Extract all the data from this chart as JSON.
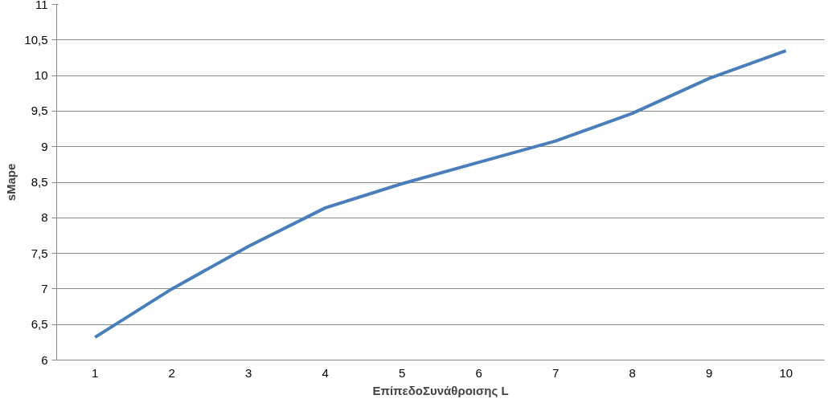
{
  "chart_data": {
    "type": "line",
    "xlabel": "ΕπίπεδοΣυνάθροισης L",
    "ylabel": "sMape",
    "categories": [
      "1",
      "2",
      "3",
      "4",
      "5",
      "6",
      "7",
      "8",
      "9",
      "10"
    ],
    "series": [
      {
        "color": "#4a7ebb",
        "values": [
          6.32,
          7.0,
          7.6,
          8.14,
          8.48,
          8.78,
          9.08,
          9.47,
          9.96,
          10.35
        ]
      }
    ],
    "ylim": [
      6,
      11
    ],
    "yticks": [
      6,
      {
        "value": 6.5,
        "label": "6,5"
      },
      7,
      {
        "value": 7.5,
        "label": "7,5"
      },
      8,
      {
        "value": 8.5,
        "label": "8,5"
      },
      9,
      {
        "value": 9.5,
        "label": "9,5"
      },
      10,
      {
        "value": 10.5,
        "label": "10,5"
      },
      11
    ],
    "grid": "y",
    "marker": "none",
    "line_style": "solid"
  }
}
